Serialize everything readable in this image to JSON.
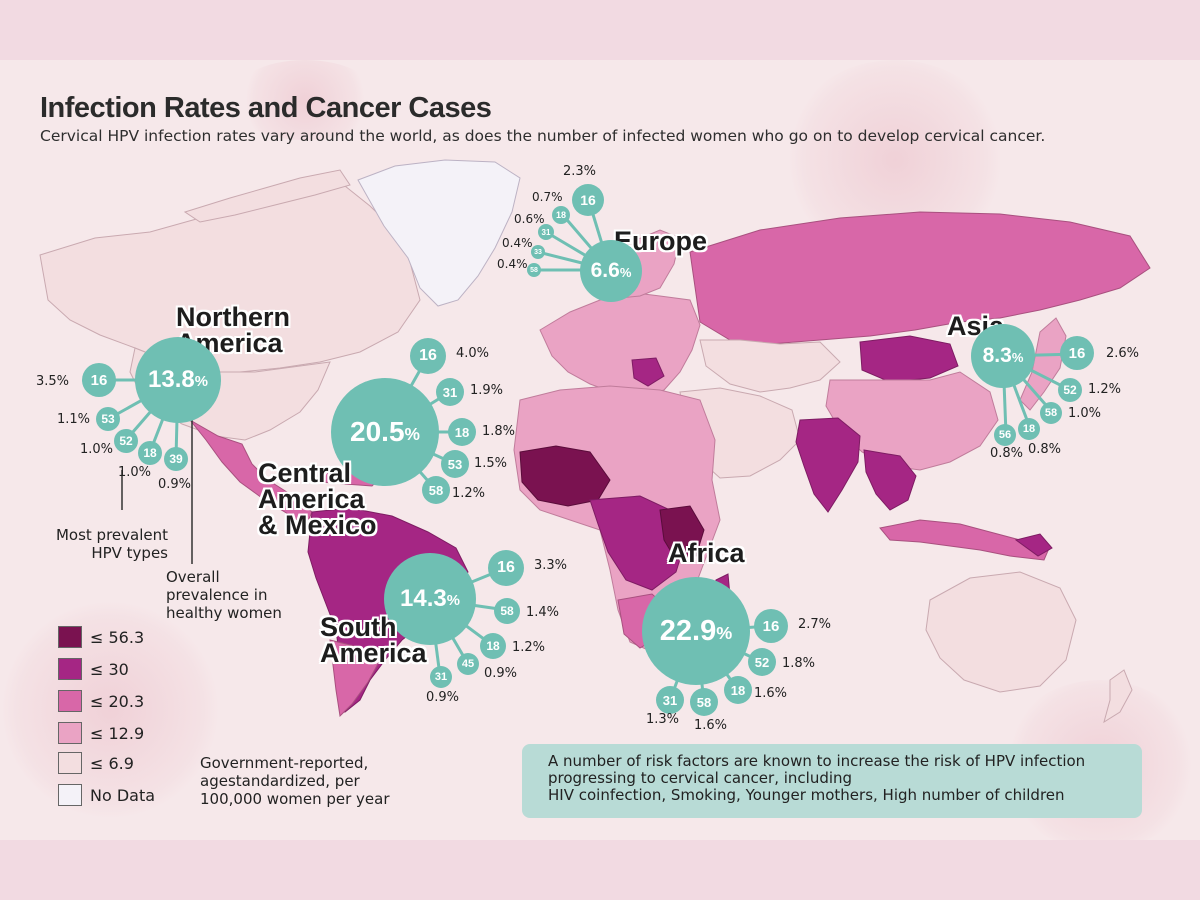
{
  "title": "Infection Rates and Cancer Cases",
  "subtitle": "Cervical HPV infection rates vary around the world, as does the number of infected women who go on to develop cervical cancer.",
  "regions": {
    "europe": {
      "name": "Europe",
      "overall": "6.6",
      "unit": "%",
      "types": [
        {
          "type": "16",
          "pct": "2.3%"
        },
        {
          "type": "18",
          "pct": "0.7%"
        },
        {
          "type": "31",
          "pct": "0.6%"
        },
        {
          "type": "33",
          "pct": "0.4%"
        },
        {
          "type": "58",
          "pct": "0.4%"
        }
      ]
    },
    "northern_america": {
      "name_line1": "Northern",
      "name_line2": "America",
      "overall": "13.8",
      "unit": "%",
      "types": [
        {
          "type": "16",
          "pct": "3.5%"
        },
        {
          "type": "53",
          "pct": "1.1%"
        },
        {
          "type": "52",
          "pct": "1.0%"
        },
        {
          "type": "18",
          "pct": "1.0%"
        },
        {
          "type": "39",
          "pct": "0.9%"
        }
      ]
    },
    "central_america": {
      "name_line1": "Central",
      "name_line2": "America",
      "name_line3": "& Mexico",
      "overall": "20.5",
      "unit": "%",
      "types": [
        {
          "type": "16",
          "pct": "4.0%"
        },
        {
          "type": "31",
          "pct": "1.9%"
        },
        {
          "type": "18",
          "pct": "1.8%"
        },
        {
          "type": "53",
          "pct": "1.5%"
        },
        {
          "type": "58",
          "pct": "1.2%"
        }
      ]
    },
    "asia": {
      "name": "Asia",
      "overall": "8.3",
      "unit": "%",
      "types": [
        {
          "type": "16",
          "pct": "2.6%"
        },
        {
          "type": "52",
          "pct": "1.2%"
        },
        {
          "type": "58",
          "pct": "1.0%"
        },
        {
          "type": "18",
          "pct": "0.8%"
        },
        {
          "type": "56",
          "pct": "0.8%"
        }
      ]
    },
    "africa": {
      "name": "Africa",
      "overall": "22.9",
      "unit": "%",
      "types": [
        {
          "type": "16",
          "pct": "2.7%"
        },
        {
          "type": "52",
          "pct": "1.8%"
        },
        {
          "type": "18",
          "pct": "1.6%"
        },
        {
          "type": "58",
          "pct": "1.6%"
        },
        {
          "type": "31",
          "pct": "1.3%"
        }
      ]
    },
    "south_america": {
      "name_line1": "South",
      "name_line2": "America",
      "overall": "14.3",
      "unit": "%",
      "types": [
        {
          "type": "16",
          "pct": "3.3%"
        },
        {
          "type": "58",
          "pct": "1.4%"
        },
        {
          "type": "18",
          "pct": "1.2%"
        },
        {
          "type": "45",
          "pct": "0.9%"
        },
        {
          "type": "31",
          "pct": "0.9%"
        }
      ]
    }
  },
  "annotations": {
    "most_prevalent": "Most prevalent HPV types",
    "overall_prevalence": "Overall prevalence in healthy women"
  },
  "legend": {
    "items": [
      {
        "label": "≤ 56.3",
        "color": "#7a1250"
      },
      {
        "label": "≤ 30",
        "color": "#a52684"
      },
      {
        "label": "≤ 20.3",
        "color": "#d867a8"
      },
      {
        "label": "≤ 12.9",
        "color": "#eaa3c4"
      },
      {
        "label": "≤ 6.9",
        "color": "#f3dee0"
      },
      {
        "label": "No Data",
        "color": "#f4f2f8"
      }
    ],
    "note": "Government-reported, agestandardized, per 100,000 women per year"
  },
  "risk_box": {
    "text1": "A number of risk factors are known to increase the risk of HPV infection progressing to cervical cancer, including",
    "text2": "HIV coinfection, Smoking, Younger mothers, High number of children"
  },
  "colors": {
    "teal": "#6fbfb3",
    "background": "#f6e8ea",
    "band": "#f2dae2"
  }
}
